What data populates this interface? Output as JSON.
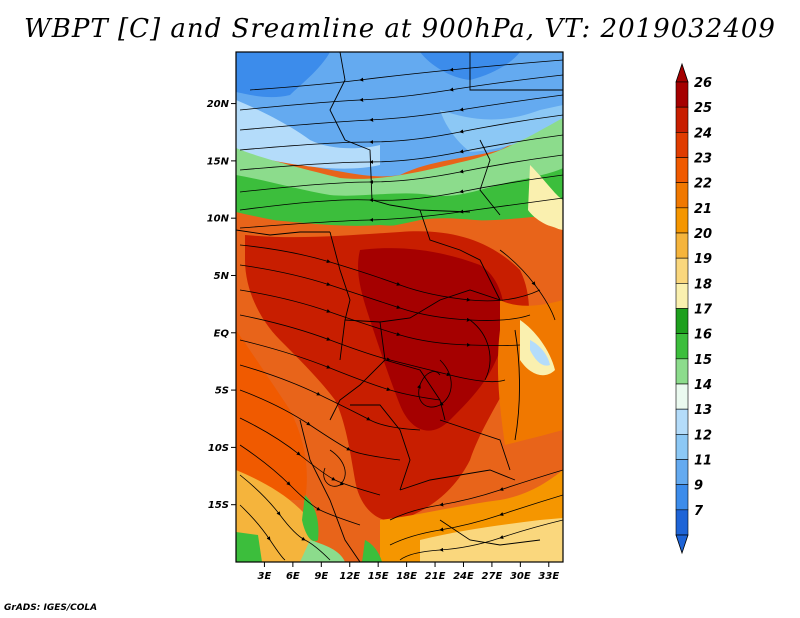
{
  "title": "WBPT [C] and Sreamline at 900hPa, VT: 2019032409",
  "credit": "GrADS: IGES/COLA",
  "axes": {
    "lat_labels": [
      "20N",
      "15N",
      "10N",
      "5N",
      "EQ",
      "5S",
      "10S",
      "15S"
    ],
    "lat_values": [
      20,
      15,
      10,
      5,
      0,
      -5,
      -10,
      -15
    ],
    "lon_labels": [
      "3E",
      "6E",
      "9E",
      "12E",
      "15E",
      "18E",
      "21E",
      "24E",
      "27E",
      "30E",
      "33E"
    ],
    "lon_values": [
      3,
      6,
      9,
      12,
      15,
      18,
      21,
      24,
      27,
      30,
      33
    ],
    "lat_range": [
      -20,
      24.5
    ],
    "lon_range": [
      0,
      34.5
    ]
  },
  "colorbar": {
    "levels": [
      "26",
      "25",
      "24",
      "23",
      "22",
      "21",
      "20",
      "19",
      "18",
      "17",
      "16",
      "15",
      "14",
      "13",
      "12",
      "11",
      "9",
      "7"
    ],
    "colors": [
      "#a50000",
      "#c81e00",
      "#e03c00",
      "#f05a00",
      "#f07800",
      "#f59600",
      "#f5b43c",
      "#fad77d",
      "#faf0af",
      "#1ea01e",
      "#3cbe3c",
      "#8cdc8c",
      "#ebfaf0",
      "#b4dcfa",
      "#8cc8f5",
      "#64aaf0",
      "#3c8ceb",
      "#1e64d7"
    ],
    "arrow_top_color": "#a50000",
    "arrow_bottom_color": "#1e64d7"
  },
  "field_description_colors": {
    "tropical_max": "#c81e00",
    "north_cool": "#64aaf0",
    "transition_green": "#3cbe3c"
  }
}
